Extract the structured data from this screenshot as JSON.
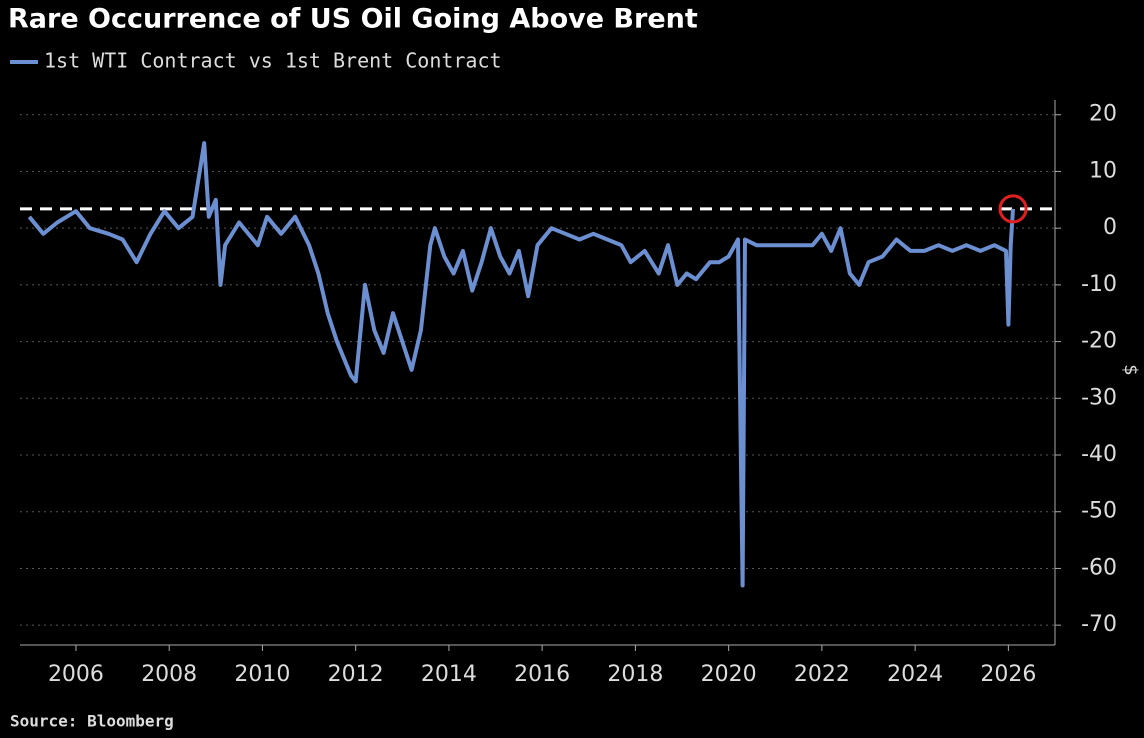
{
  "chart_data": {
    "type": "line",
    "title": "Rare Occurrence of US Oil Going Above Brent",
    "y_label": "$",
    "source": "Source: Bloomberg",
    "series": [
      {
        "name": "1st WTI Contract vs 1st Brent Contract",
        "color": "#6b8fd1",
        "x": [
          2005.0,
          2005.3,
          2005.6,
          2006.0,
          2006.3,
          2006.7,
          2007.0,
          2007.3,
          2007.6,
          2007.9,
          2008.2,
          2008.5,
          2008.75,
          2008.85,
          2009.0,
          2009.1,
          2009.2,
          2009.5,
          2009.9,
          2010.1,
          2010.4,
          2010.7,
          2011.0,
          2011.2,
          2011.4,
          2011.6,
          2011.9,
          2012.0,
          2012.2,
          2012.4,
          2012.6,
          2012.8,
          2013.0,
          2013.2,
          2013.4,
          2013.6,
          2013.7,
          2013.9,
          2014.1,
          2014.3,
          2014.5,
          2014.7,
          2014.9,
          2015.1,
          2015.3,
          2015.5,
          2015.7,
          2015.9,
          2016.2,
          2016.5,
          2016.8,
          2017.1,
          2017.4,
          2017.7,
          2017.9,
          2018.2,
          2018.5,
          2018.7,
          2018.9,
          2019.1,
          2019.3,
          2019.6,
          2019.8,
          2020.0,
          2020.2,
          2020.3,
          2020.35,
          2020.6,
          2020.9,
          2021.2,
          2021.5,
          2021.8,
          2022.0,
          2022.2,
          2022.4,
          2022.6,
          2022.8,
          2023.0,
          2023.3,
          2023.6,
          2023.9,
          2024.2,
          2024.5,
          2024.8,
          2025.1,
          2025.4,
          2025.7,
          2025.95,
          2026.0,
          2026.05,
          2026.1
        ],
        "values": [
          2,
          -1,
          1,
          3,
          0,
          -1,
          -2,
          -6,
          -1,
          3,
          0,
          2,
          15,
          2,
          5,
          -10,
          -3,
          1,
          -3,
          2,
          -1,
          2,
          -3,
          -8,
          -15,
          -20,
          -26,
          -27,
          -10,
          -18,
          -22,
          -15,
          -20,
          -25,
          -18,
          -3,
          0,
          -5,
          -8,
          -4,
          -11,
          -6,
          0,
          -5,
          -8,
          -4,
          -12,
          -3,
          0,
          -1,
          -2,
          -1,
          -2,
          -3,
          -6,
          -4,
          -8,
          -3,
          -10,
          -8,
          -9,
          -6,
          -6,
          -5,
          -2,
          -63,
          -2,
          -3,
          -3,
          -3,
          -3,
          -3,
          -1,
          -4,
          0,
          -8,
          -10,
          -6,
          -5,
          -2,
          -4,
          -4,
          -3,
          -4,
          -3,
          -4,
          -3,
          -4,
          -17,
          -3,
          3.4
        ]
      }
    ],
    "xlim": [
      2004.8,
      2027.0
    ],
    "xticks": [
      2006,
      2008,
      2010,
      2012,
      2014,
      2016,
      2018,
      2020,
      2022,
      2024,
      2026
    ],
    "ylim": [
      -73.5,
      22.6
    ],
    "yticks": [
      20,
      10,
      0,
      -10,
      -20,
      -30,
      -40,
      -50,
      -60,
      -70
    ],
    "reference_line": 3.4,
    "highlight": {
      "x": 2026.1,
      "y": 3.4,
      "color": "#e02020"
    },
    "grid": true
  }
}
